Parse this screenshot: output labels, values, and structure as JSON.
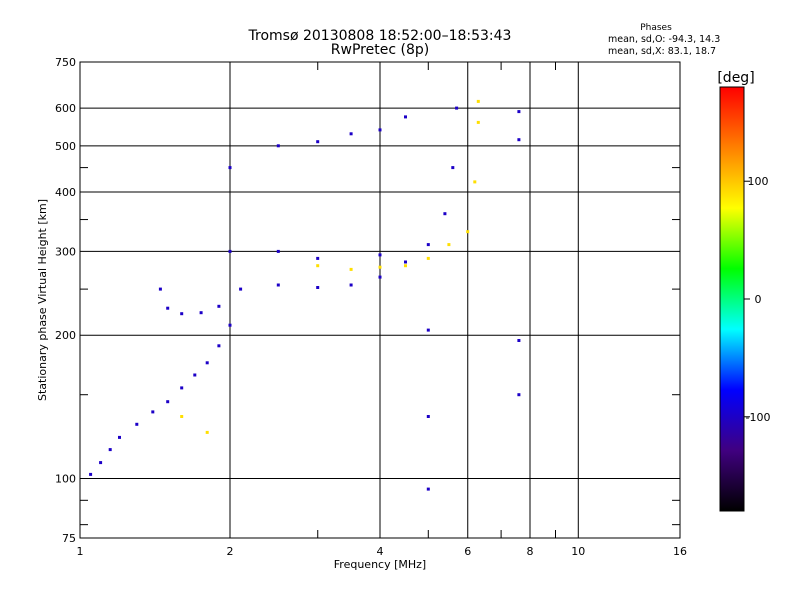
{
  "chart_data": {
    "type": "scatter",
    "title": "Tromsø 20130808 18:52:00–18:53:43",
    "subtitle": "RwPretec (8p)",
    "xlabel": "Frequency [MHz]",
    "ylabel": "Stationary phase Virtual Height [km]",
    "x_scale": "log",
    "y_scale": "log",
    "xlim": [
      1,
      16
    ],
    "ylim": [
      75,
      750
    ],
    "x_ticks": [
      1,
      2,
      4,
      6,
      8,
      10,
      16
    ],
    "y_ticks": [
      75,
      100,
      200,
      300,
      400,
      500,
      600,
      750
    ],
    "grid": true,
    "stats": {
      "heading": "Phases",
      "line_o": "mean, sd,O: -94.3, 14.3",
      "line_x": "mean, sd,X:  83.1, 18.7"
    },
    "colorbar": {
      "label": "[deg]",
      "ticks": [
        "100",
        "0",
        "-100"
      ],
      "range": [
        -180,
        180
      ],
      "colors": [
        "#ff0000",
        "#ff8000",
        "#ffff00",
        "#00ff00",
        "#00ffff",
        "#0000ff",
        "#400080",
        "#000000"
      ]
    },
    "series": [
      {
        "points": [
          [
            1.05,
            102,
            -100
          ],
          [
            1.1,
            108,
            -100
          ],
          [
            1.15,
            115,
            -100
          ],
          [
            1.2,
            122,
            -100
          ],
          [
            1.3,
            130,
            -100
          ],
          [
            1.4,
            138,
            -100
          ],
          [
            1.5,
            145,
            -100
          ],
          [
            1.6,
            155,
            -100
          ],
          [
            1.7,
            165,
            -100
          ],
          [
            1.8,
            175,
            -100
          ],
          [
            1.9,
            190,
            -100
          ],
          [
            2.0,
            210,
            -100
          ],
          [
            2.0,
            300,
            -100
          ],
          [
            2.0,
            450,
            -100
          ],
          [
            1.45,
            250,
            -100
          ],
          [
            1.5,
            228,
            -100
          ],
          [
            1.6,
            222,
            -100
          ],
          [
            1.75,
            223,
            -100
          ],
          [
            1.9,
            230,
            -100
          ],
          [
            2.1,
            250,
            -100
          ],
          [
            2.5,
            255,
            -100
          ],
          [
            3.0,
            252,
            -100
          ],
          [
            3.5,
            255,
            -100
          ],
          [
            4.0,
            265,
            -100
          ],
          [
            4.5,
            285,
            -100
          ],
          [
            5.0,
            310,
            -100
          ],
          [
            5.4,
            360,
            -100
          ],
          [
            5.6,
            450,
            -100
          ],
          [
            5.7,
            600,
            -100
          ],
          [
            2.5,
            300,
            -100
          ],
          [
            3.0,
            290,
            -100
          ],
          [
            4.0,
            295,
            -100
          ],
          [
            2.5,
            500,
            -100
          ],
          [
            3.0,
            510,
            -100
          ],
          [
            3.5,
            530,
            -100
          ],
          [
            4.0,
            540,
            -100
          ],
          [
            4.5,
            575,
            -100
          ],
          [
            5.0,
            205,
            -100
          ],
          [
            5.0,
            135,
            -100
          ],
          [
            5.0,
            95,
            -100
          ],
          [
            7.6,
            590,
            -100
          ],
          [
            7.6,
            515,
            -100
          ],
          [
            7.6,
            195,
            -100
          ],
          [
            7.6,
            150,
            -100
          ],
          [
            1.6,
            135,
            90
          ],
          [
            1.8,
            125,
            90
          ],
          [
            3.0,
            280,
            90
          ],
          [
            3.5,
            275,
            90
          ],
          [
            4.0,
            278,
            90
          ],
          [
            4.5,
            280,
            90
          ],
          [
            5.0,
            290,
            90
          ],
          [
            5.5,
            310,
            90
          ],
          [
            6.0,
            330,
            90
          ],
          [
            6.2,
            420,
            90
          ],
          [
            6.3,
            560,
            90
          ],
          [
            6.3,
            620,
            90
          ]
        ]
      }
    ]
  }
}
